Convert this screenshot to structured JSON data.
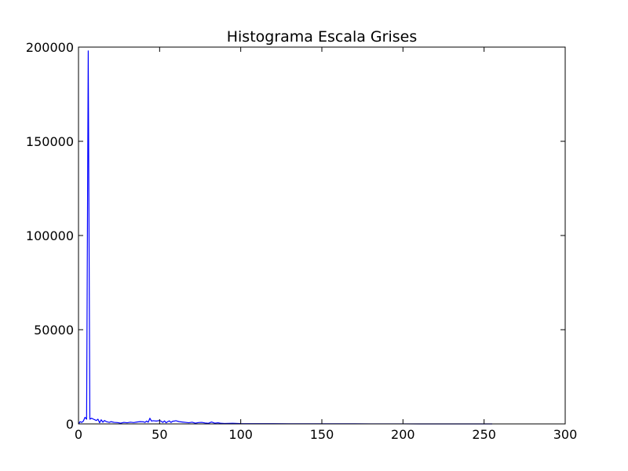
{
  "chart_data": {
    "type": "line",
    "title": "Histograma Escala Grises",
    "xlabel": "",
    "ylabel": "",
    "xlim": [
      0,
      300
    ],
    "ylim": [
      0,
      200000
    ],
    "x_ticks": [
      0,
      50,
      100,
      150,
      200,
      250,
      300
    ],
    "y_ticks": [
      0,
      50000,
      100000,
      150000,
      200000
    ],
    "x_tick_labels": [
      "0",
      "50",
      "100",
      "150",
      "200",
      "250",
      "300"
    ],
    "y_tick_labels": [
      "0",
      "50000",
      "100000",
      "150000",
      "200000"
    ],
    "grid": false,
    "line_color": "#0000ff",
    "series": [
      {
        "x": [
          0,
          1,
          2,
          3,
          4,
          5,
          6,
          7,
          8,
          9,
          10,
          11,
          12,
          13,
          14,
          15,
          16,
          17,
          18,
          19,
          20,
          22,
          24,
          26,
          28,
          30,
          32,
          34,
          36,
          38,
          40,
          41,
          42,
          43,
          44,
          45,
          46,
          48,
          50,
          51,
          52,
          53,
          54,
          55,
          56,
          57,
          58,
          59,
          60,
          62,
          64,
          66,
          68,
          70,
          72,
          74,
          76,
          78,
          80,
          82,
          84,
          86,
          88,
          90,
          95,
          100,
          110,
          120,
          130,
          140,
          150,
          160,
          170,
          180,
          190,
          200,
          210,
          220,
          230,
          240,
          250,
          255
        ],
        "y": [
          0,
          1200,
          800,
          1500,
          3500,
          2500,
          198000,
          2500,
          3000,
          2600,
          2200,
          1800,
          2500,
          600,
          2200,
          900,
          1800,
          1300,
          1000,
          800,
          1200,
          800,
          700,
          400,
          800,
          600,
          900,
          700,
          1000,
          1200,
          1100,
          800,
          1500,
          900,
          3000,
          1500,
          1700,
          1500,
          1800,
          1400,
          800,
          1600,
          600,
          1200,
          1600,
          800,
          1400,
          1500,
          1700,
          1200,
          1000,
          800,
          600,
          900,
          400,
          700,
          800,
          500,
          300,
          1000,
          400,
          600,
          300,
          200,
          300,
          150,
          120,
          100,
          80,
          60,
          60,
          50,
          40,
          30,
          20,
          15,
          10,
          8,
          5,
          3,
          2,
          0
        ]
      }
    ]
  }
}
